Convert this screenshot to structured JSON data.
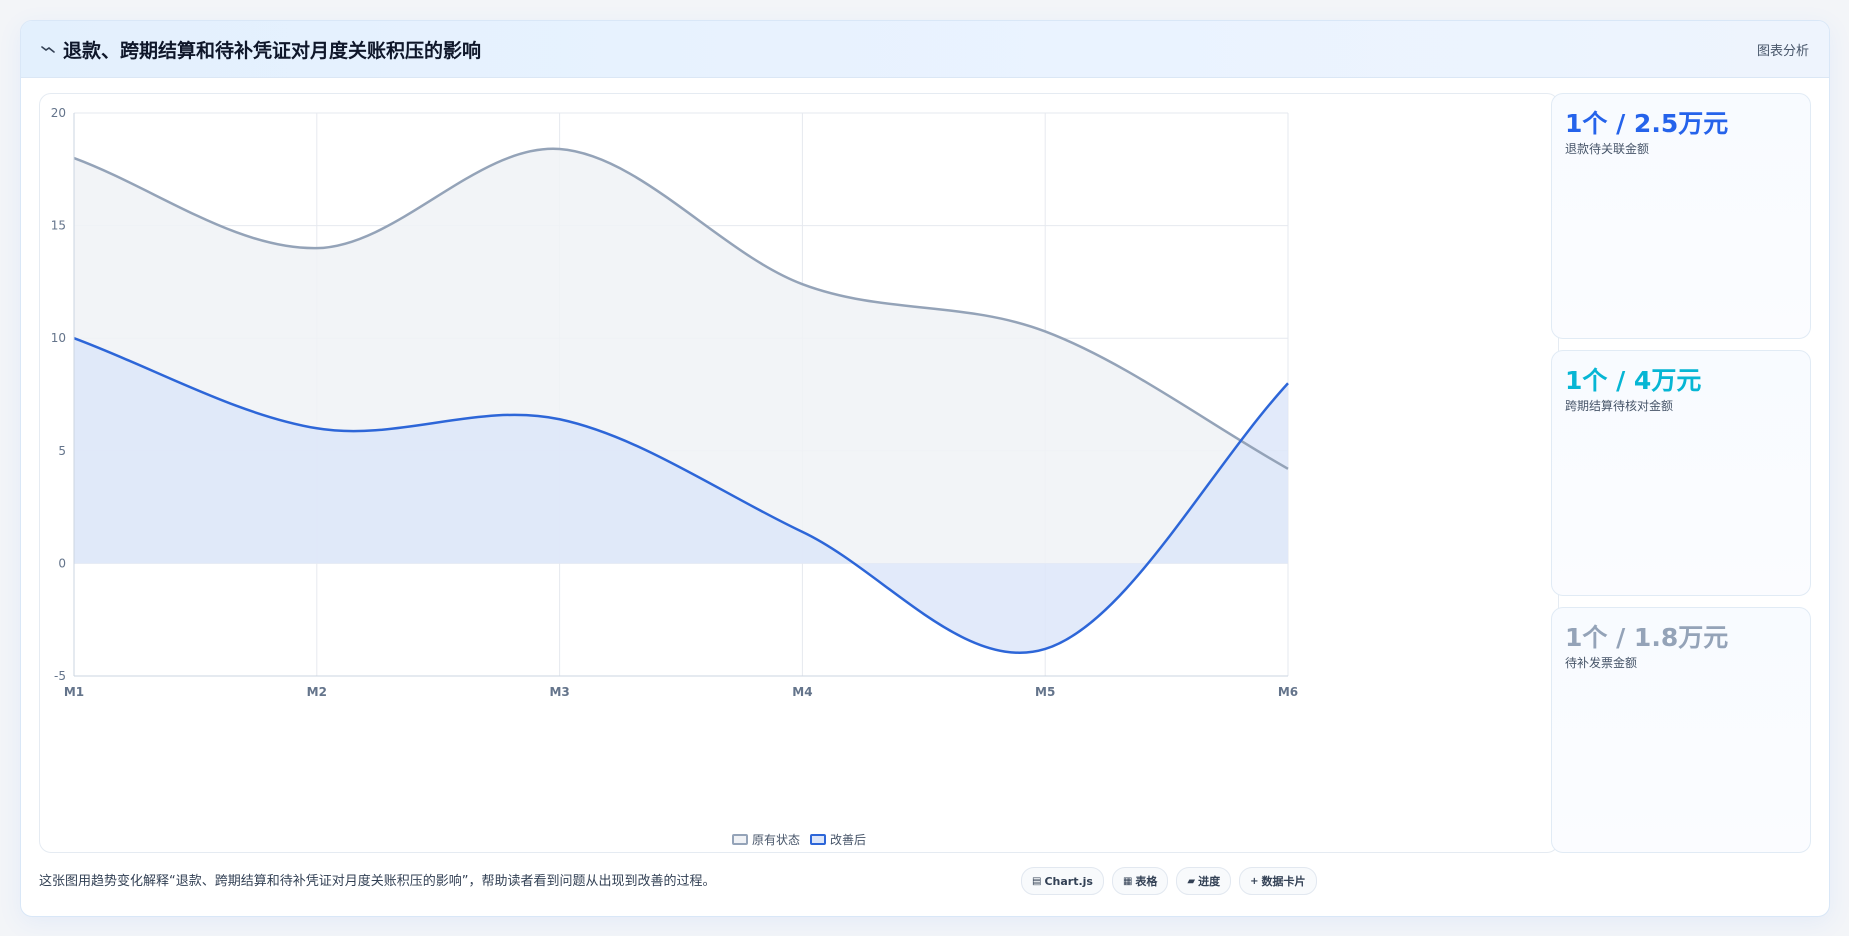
{
  "header": {
    "icon": "trend-line-icon",
    "title": "退款、跨期结算和待补凭证对月度关账积压的影响",
    "tag": "图表分析"
  },
  "chart_data": {
    "type": "line",
    "x": [
      "M1",
      "M2",
      "M3",
      "M4",
      "M5",
      "M6"
    ],
    "series": [
      {
        "name": "原有状态",
        "values": [
          18,
          14,
          18.4,
          12.4,
          10.3,
          4.2
        ],
        "color": "#94a3b8",
        "fill": "#f0f2f6"
      },
      {
        "name": "改善后",
        "values": [
          10,
          6,
          6.4,
          1.4,
          -3.8,
          8
        ],
        "color": "#2d66d8",
        "fill": "#dde6f9"
      }
    ],
    "ylim": [
      -5,
      20
    ],
    "yticks": [
      -5,
      0,
      5,
      10,
      15,
      20
    ],
    "grid": true,
    "legend": "bottom-center",
    "xlabel": "",
    "ylabel": ""
  },
  "stats": [
    {
      "value": "1个 / 2.5万元",
      "label": "退款待关联金额",
      "color": "#2563eb"
    },
    {
      "value": "1个 / 4万元",
      "label": "跨期结算待核对金额",
      "color": "#06b6d4"
    },
    {
      "value": "1个 / 1.8万元",
      "label": "待补发票金额",
      "color": "#94a3b8"
    }
  ],
  "footer": {
    "note": "这张图用趋势变化解释“退款、跨期结算和待补凭证对月度关账积压的影响”，帮助读者看到问题从出现到改善的过程。",
    "chips": [
      {
        "icon": "chart-icon",
        "glyph": "▤",
        "label": "Chart.js"
      },
      {
        "icon": "table-icon",
        "glyph": "▦",
        "label": "表格"
      },
      {
        "icon": "progress-icon",
        "glyph": "▰",
        "label": "进度"
      },
      {
        "icon": "card-icon",
        "glyph": "+",
        "label": "数据卡片"
      }
    ]
  }
}
